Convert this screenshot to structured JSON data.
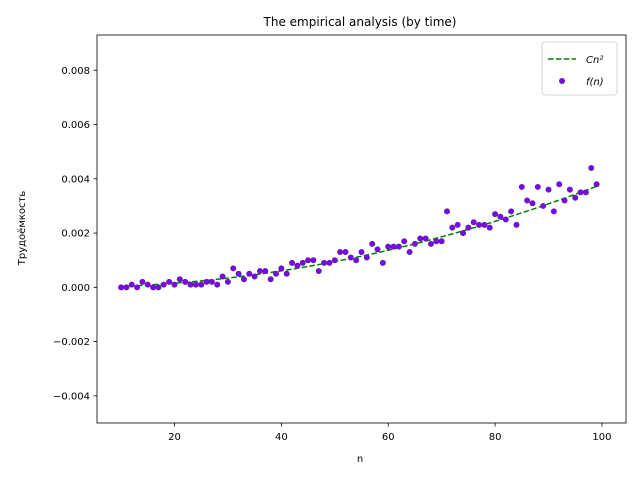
{
  "chart_data": {
    "type": "scatter",
    "title": "The empirical analysis (by time)",
    "xlabel": "n",
    "ylabel": "Трудоёмкость",
    "xlim": [
      5.5,
      104.5
    ],
    "ylim": [
      -0.005,
      0.0093
    ],
    "xticks": [
      20,
      40,
      60,
      80,
      100
    ],
    "xtick_labels": [
      "20",
      "40",
      "60",
      "80",
      "100"
    ],
    "yticks": [
      -0.004,
      -0.002,
      0.0,
      0.002,
      0.004,
      0.006,
      0.008
    ],
    "ytick_labels": [
      "−0.004",
      "−0.002",
      "0.000",
      "0.002",
      "0.004",
      "0.006",
      "0.008"
    ],
    "legend_position": "top-right",
    "series": [
      {
        "name": "Cn²",
        "kind": "line",
        "style": "dashed",
        "color": "#008000",
        "coefficient": 3.8e-07,
        "x_range": [
          10,
          99
        ]
      },
      {
        "name": "f(n)",
        "kind": "scatter",
        "color": "#8000ff",
        "edge_color": "#5a2a8a",
        "points": [
          [
            10,
            0.0
          ],
          [
            11,
            0.0
          ],
          [
            12,
            0.0001
          ],
          [
            13,
            0.0
          ],
          [
            14,
            0.0002
          ],
          [
            15,
            0.0001
          ],
          [
            16,
            0.0
          ],
          [
            17,
            0.0
          ],
          [
            18,
            0.0001
          ],
          [
            19,
            0.0002
          ],
          [
            20,
            0.0001
          ],
          [
            21,
            0.0003
          ],
          [
            22,
            0.0002
          ],
          [
            23,
            0.0001
          ],
          [
            24,
            0.0001
          ],
          [
            25,
            0.0001
          ],
          [
            26,
            0.0002
          ],
          [
            27,
            0.0002
          ],
          [
            28,
            0.0001
          ],
          [
            29,
            0.0004
          ],
          [
            30,
            0.0002
          ],
          [
            31,
            0.0007
          ],
          [
            32,
            0.0005
          ],
          [
            33,
            0.0003
          ],
          [
            34,
            0.0005
          ],
          [
            35,
            0.0004
          ],
          [
            36,
            0.0006
          ],
          [
            37,
            0.0006
          ],
          [
            38,
            0.0003
          ],
          [
            39,
            0.0005
          ],
          [
            40,
            0.0007
          ],
          [
            41,
            0.0005
          ],
          [
            42,
            0.0009
          ],
          [
            43,
            0.0008
          ],
          [
            44,
            0.0009
          ],
          [
            45,
            0.001
          ],
          [
            46,
            0.001
          ],
          [
            47,
            0.0006
          ],
          [
            48,
            0.0009
          ],
          [
            49,
            0.0009
          ],
          [
            50,
            0.001
          ],
          [
            51,
            0.0013
          ],
          [
            52,
            0.0013
          ],
          [
            53,
            0.0011
          ],
          [
            54,
            0.001
          ],
          [
            55,
            0.0013
          ],
          [
            56,
            0.0011
          ],
          [
            57,
            0.0016
          ],
          [
            58,
            0.0014
          ],
          [
            59,
            0.0009
          ],
          [
            60,
            0.0015
          ],
          [
            61,
            0.0015
          ],
          [
            62,
            0.0015
          ],
          [
            63,
            0.0017
          ],
          [
            64,
            0.0013
          ],
          [
            65,
            0.0016
          ],
          [
            66,
            0.0018
          ],
          [
            67,
            0.0018
          ],
          [
            68,
            0.0016
          ],
          [
            69,
            0.0017
          ],
          [
            70,
            0.0017
          ],
          [
            71,
            0.0028
          ],
          [
            72,
            0.0022
          ],
          [
            73,
            0.0023
          ],
          [
            74,
            0.002
          ],
          [
            75,
            0.0022
          ],
          [
            76,
            0.0024
          ],
          [
            77,
            0.0023
          ],
          [
            78,
            0.0023
          ],
          [
            79,
            0.0022
          ],
          [
            80,
            0.0027
          ],
          [
            81,
            0.0026
          ],
          [
            82,
            0.0025
          ],
          [
            83,
            0.0028
          ],
          [
            84,
            0.0023
          ],
          [
            85,
            0.0037
          ],
          [
            86,
            0.0032
          ],
          [
            87,
            0.0031
          ],
          [
            88,
            0.0037
          ],
          [
            89,
            0.003
          ],
          [
            90,
            0.0036
          ],
          [
            91,
            0.0028
          ],
          [
            92,
            0.0038
          ],
          [
            93,
            0.0032
          ],
          [
            94,
            0.0036
          ],
          [
            95,
            0.0033
          ],
          [
            96,
            0.0035
          ],
          [
            97,
            0.0035
          ],
          [
            98,
            0.0044
          ],
          [
            99,
            0.0038
          ]
        ]
      }
    ]
  }
}
